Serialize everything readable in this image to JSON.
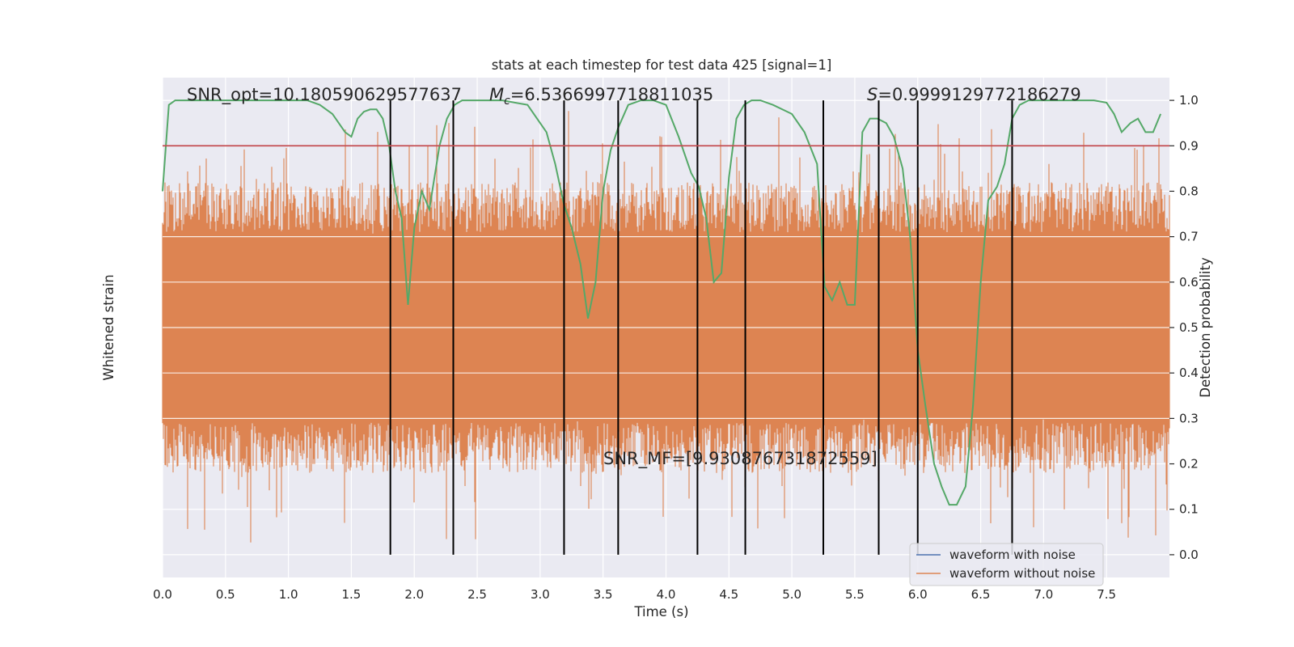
{
  "chart_data": {
    "type": "line",
    "title": "stats at each timestep for test data 425 [signal=1]",
    "xlabel": "Time (s)",
    "ylabel_left": "Whitened strain",
    "ylabel_right": "Detection probability",
    "xlim": [
      0.0,
      8.0
    ],
    "ylim_right": [
      -0.05,
      1.05
    ],
    "x_ticks": [
      "0.0",
      "0.5",
      "1.0",
      "1.5",
      "2.0",
      "2.5",
      "3.0",
      "3.5",
      "4.0",
      "4.5",
      "5.0",
      "5.5",
      "6.0",
      "6.5",
      "7.0",
      "7.5"
    ],
    "y_ticks_right": [
      "0.0",
      "0.1",
      "0.2",
      "0.3",
      "0.4",
      "0.5",
      "0.6",
      "0.7",
      "0.8",
      "0.9",
      "1.0"
    ],
    "grid": true,
    "annotations": {
      "snr_opt": "SNR_opt=10.180590629577637",
      "mc_symbol": "M",
      "mc_sub": "c",
      "mc_value": "=6.5366997718811035",
      "s_symbol": "S",
      "s_value": "=0.9999129772186279",
      "snr_mf": "SNR_MF=[9.930876731872559]"
    },
    "legend": {
      "position": "lower right",
      "entries": [
        {
          "label": "waveform with noise",
          "color": "#4c72b0"
        },
        {
          "label": "waveform without noise",
          "color": "#dd8452"
        }
      ]
    },
    "threshold": {
      "value": 0.9,
      "color": "#c44e52"
    },
    "vertical_lines_x": [
      1.81,
      2.31,
      3.19,
      3.62,
      4.25,
      4.63,
      5.25,
      5.69,
      6.0,
      6.75
    ],
    "noise_series": {
      "name": "waveform without noise",
      "color": "#dd8452",
      "envelope_core": [
        0.3,
        0.7
      ],
      "envelope_peak": [
        0.02,
        0.98
      ]
    },
    "probability_series": {
      "color": "#55a868",
      "x": [
        0.0,
        0.05,
        0.1,
        0.2,
        0.3,
        0.5,
        0.8,
        1.0,
        1.15,
        1.25,
        1.35,
        1.45,
        1.5,
        1.55,
        1.6,
        1.65,
        1.7,
        1.75,
        1.8,
        1.85,
        1.9,
        1.95,
        2.0,
        2.06,
        2.12,
        2.2,
        2.26,
        2.32,
        2.38,
        2.45,
        2.55,
        2.7,
        2.9,
        3.05,
        3.12,
        3.19,
        3.25,
        3.32,
        3.38,
        3.44,
        3.5,
        3.56,
        3.62,
        3.7,
        3.8,
        3.9,
        4.0,
        4.1,
        4.2,
        4.26,
        4.32,
        4.38,
        4.44,
        4.5,
        4.56,
        4.62,
        4.68,
        4.75,
        4.85,
        5.0,
        5.1,
        5.2,
        5.26,
        5.32,
        5.38,
        5.44,
        5.5,
        5.56,
        5.62,
        5.68,
        5.75,
        5.81,
        5.88,
        5.94,
        6.0,
        6.06,
        6.13,
        6.19,
        6.25,
        6.31,
        6.38,
        6.44,
        6.5,
        6.56,
        6.63,
        6.69,
        6.75,
        6.81,
        6.88,
        6.94,
        7.0,
        7.2,
        7.4,
        7.5,
        7.56,
        7.62,
        7.69,
        7.75,
        7.81,
        7.87,
        7.93
      ],
      "y": [
        0.8,
        0.99,
        1.0,
        1.0,
        1.0,
        1.0,
        1.0,
        1.0,
        1.0,
        0.99,
        0.97,
        0.93,
        0.92,
        0.96,
        0.975,
        0.98,
        0.98,
        0.96,
        0.9,
        0.8,
        0.74,
        0.55,
        0.72,
        0.8,
        0.76,
        0.9,
        0.96,
        0.99,
        1.0,
        1.0,
        1.0,
        1.0,
        0.99,
        0.93,
        0.86,
        0.77,
        0.72,
        0.64,
        0.52,
        0.6,
        0.8,
        0.89,
        0.94,
        0.99,
        1.0,
        1.0,
        0.99,
        0.92,
        0.84,
        0.81,
        0.74,
        0.6,
        0.62,
        0.83,
        0.96,
        0.99,
        1.0,
        1.0,
        0.99,
        0.97,
        0.93,
        0.86,
        0.59,
        0.56,
        0.6,
        0.55,
        0.55,
        0.93,
        0.96,
        0.96,
        0.95,
        0.92,
        0.85,
        0.7,
        0.45,
        0.33,
        0.2,
        0.15,
        0.11,
        0.11,
        0.15,
        0.33,
        0.6,
        0.78,
        0.81,
        0.86,
        0.96,
        0.99,
        1.0,
        1.0,
        1.0,
        1.0,
        1.0,
        0.995,
        0.97,
        0.93,
        0.95,
        0.96,
        0.93,
        0.93,
        0.97
      ]
    }
  }
}
